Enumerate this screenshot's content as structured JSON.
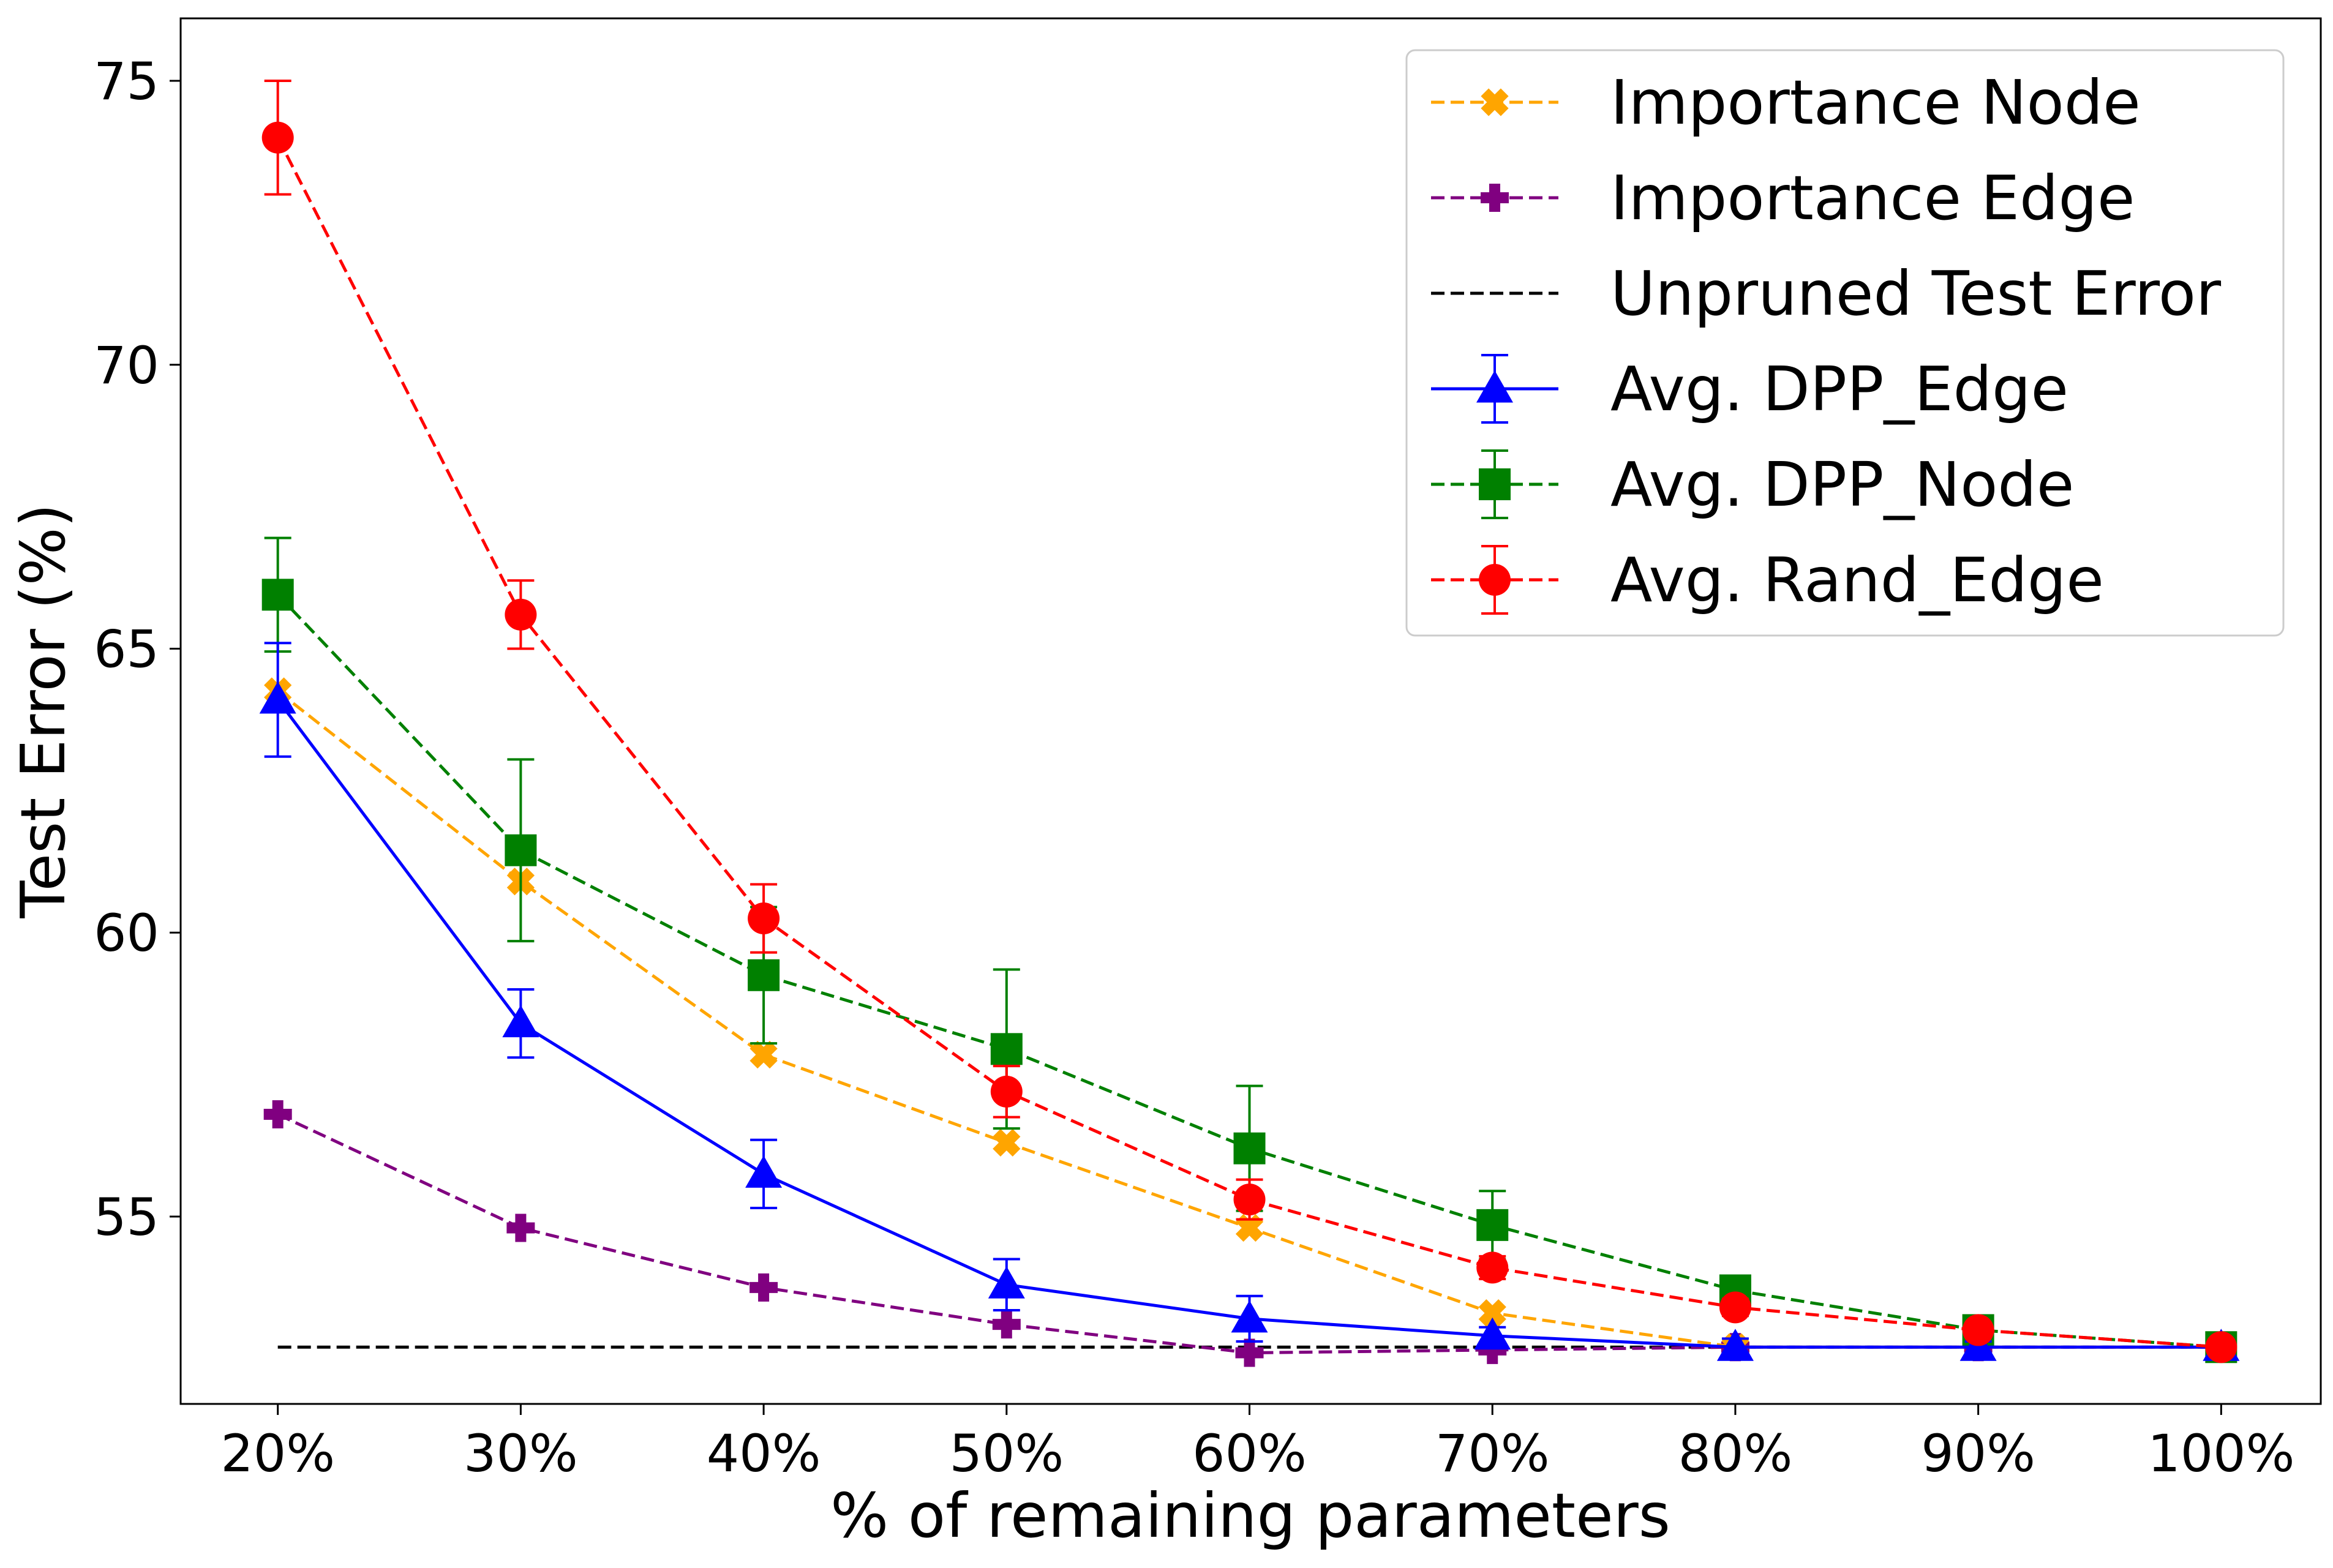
{
  "chart_data": {
    "type": "line",
    "xlabel": "% of remaining parameters",
    "ylabel": "Test Error (%)",
    "categories": [
      "20%",
      "30%",
      "40%",
      "50%",
      "60%",
      "70%",
      "80%",
      "90%",
      "100%"
    ],
    "x": [
      20,
      30,
      40,
      50,
      60,
      70,
      80,
      90,
      100
    ],
    "xlim": [
      16,
      104.1
    ],
    "ylim": [
      51.7,
      76.1
    ],
    "yticks": [
      55,
      60,
      65,
      70,
      75
    ],
    "grid": false,
    "legend_position": "top-right",
    "series": [
      {
        "name": "Importance Node",
        "color": "#FFA500",
        "marker": "x-filled",
        "linestyle": "dashed",
        "values": [
          64.25,
          60.9,
          57.85,
          56.3,
          54.8,
          53.3,
          52.7,
          52.7,
          52.7
        ]
      },
      {
        "name": "Importance Edge",
        "color": "#800080",
        "marker": "plus-filled",
        "linestyle": "dashed",
        "values": [
          56.8,
          54.8,
          53.75,
          53.1,
          52.6,
          52.65,
          52.7,
          52.7,
          52.7
        ]
      },
      {
        "name": "Unpruned Test Error",
        "color": "#000000",
        "marker": "none",
        "linestyle": "dashed",
        "values": [
          52.7,
          52.7,
          52.7,
          52.7,
          52.7,
          52.7,
          52.7,
          52.7,
          52.7
        ]
      },
      {
        "name": "Avg. DPP_Edge",
        "color": "#0000FF",
        "marker": "triangle",
        "linestyle": "solid",
        "values": [
          64.1,
          58.4,
          55.75,
          53.8,
          53.2,
          52.9,
          52.7,
          52.7,
          52.7
        ],
        "errors": [
          1.0,
          0.6,
          0.6,
          0.45,
          0.4,
          0.15,
          0.15,
          0.1,
          0.1
        ]
      },
      {
        "name": "Avg. DPP_Node",
        "color": "#008000",
        "marker": "square",
        "linestyle": "dashed",
        "values": [
          65.95,
          61.45,
          59.25,
          57.95,
          56.2,
          54.85,
          53.7,
          53.0,
          52.7
        ],
        "errors": [
          1.0,
          1.6,
          1.2,
          1.4,
          1.1,
          0.6,
          0.15,
          0.1,
          0.1
        ]
      },
      {
        "name": "Avg. Rand_Edge",
        "color": "#FF0000",
        "marker": "circle",
        "linestyle": "dashed",
        "values": [
          74.0,
          65.6,
          60.25,
          57.2,
          55.3,
          54.1,
          53.4,
          53.0,
          52.7
        ],
        "errors": [
          1.0,
          0.6,
          0.6,
          0.45,
          0.35,
          0.2,
          0.15,
          0.1,
          0.1
        ]
      }
    ]
  }
}
